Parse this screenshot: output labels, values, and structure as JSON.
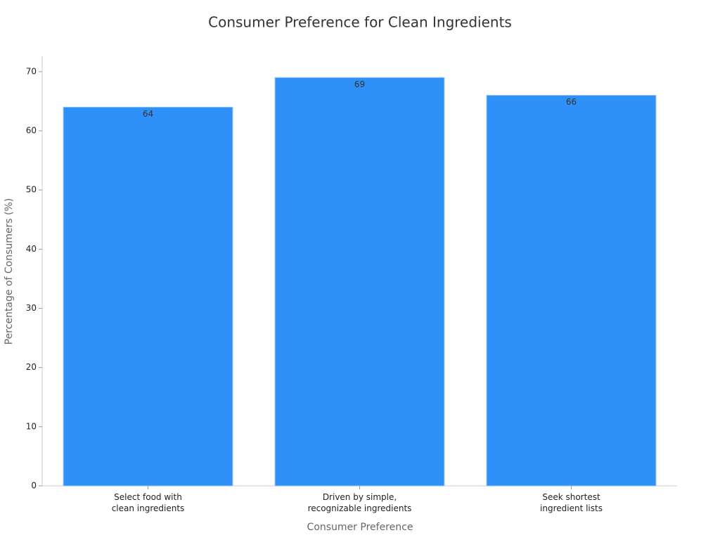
{
  "chart_data": {
    "type": "bar",
    "title": "Consumer Preference for Clean Ingredients",
    "x_label": "Consumer Preference",
    "y_label": "Percentage of Consumers (%)",
    "categories": [
      [
        "Select food with",
        "clean ingredients"
      ],
      [
        "Driven by simple,",
        "recognizable ingredients"
      ],
      [
        "Seek shortest",
        "ingredient lists"
      ]
    ],
    "values": [
      64,
      69,
      66
    ],
    "color": "#2f90f7",
    "ylim": [
      0,
      72.6
    ],
    "yticks": [
      0,
      10,
      20,
      30,
      40,
      50,
      60,
      70
    ],
    "grid": false
  }
}
